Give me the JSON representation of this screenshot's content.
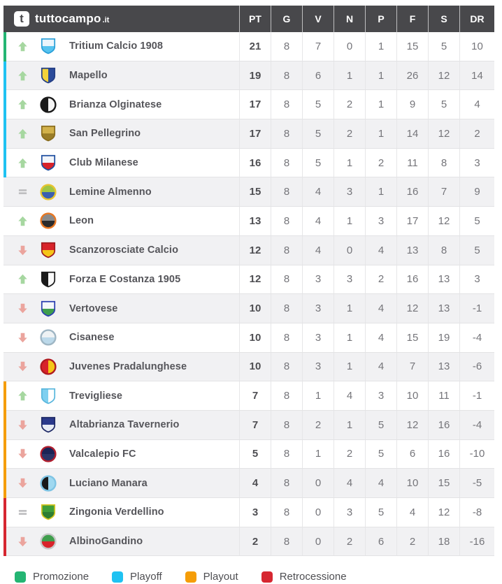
{
  "brand": {
    "icon_letter": "t",
    "name": "tuttocampo",
    "tld": ".it"
  },
  "columns": [
    "PT",
    "G",
    "V",
    "N",
    "P",
    "F",
    "S",
    "DR"
  ],
  "zone_colors": {
    "promozione": "#24b573",
    "playoff": "#1fc2f2",
    "playout": "#f59d07",
    "retrocessione": "#d62731"
  },
  "movement_colors": {
    "up": "#a6d7a0",
    "down": "#eba49d",
    "equal": "#bbbbbd"
  },
  "rows": [
    {
      "team": "Tritium Calcio 1908",
      "movement": "up",
      "zone": "promozione",
      "stats": [
        21,
        8,
        7,
        0,
        1,
        15,
        5,
        10
      ],
      "logo": {
        "shape": "shield",
        "dir": "h",
        "colors": [
          "#eaf5fc",
          "#56c3ef"
        ],
        "border": "#2a9fd8"
      }
    },
    {
      "team": "Mapello",
      "movement": "up",
      "zone": "playoff",
      "stats": [
        19,
        8,
        6,
        1,
        1,
        26,
        12,
        14
      ],
      "logo": {
        "shape": "shield",
        "dir": "v",
        "colors": [
          "#f2d23a",
          "#2b4b9b"
        ],
        "border": "#243f85"
      }
    },
    {
      "team": "Brianza Olginatese",
      "movement": "up",
      "zone": "playoff",
      "stats": [
        17,
        8,
        5,
        2,
        1,
        9,
        5,
        4
      ],
      "logo": {
        "shape": "circle",
        "dir": "v",
        "colors": [
          "#1a1a1a",
          "#f5f5f5"
        ],
        "border": "#1a1a1a"
      }
    },
    {
      "team": "San Pellegrino",
      "movement": "up",
      "zone": "playoff",
      "stats": [
        17,
        8,
        5,
        2,
        1,
        14,
        12,
        2
      ],
      "logo": {
        "shape": "shield",
        "dir": "h",
        "colors": [
          "#d2b14a",
          "#9a7d28"
        ],
        "border": "#8a6d1f"
      }
    },
    {
      "team": "Club Milanese",
      "movement": "up",
      "zone": "playoff",
      "stats": [
        16,
        8,
        5,
        1,
        2,
        11,
        8,
        3
      ],
      "logo": {
        "shape": "shield",
        "dir": "h",
        "colors": [
          "#f2f5fa",
          "#d8232a"
        ],
        "border": "#1f4fa0"
      }
    },
    {
      "team": "Lemine Almenno",
      "movement": "equal",
      "zone": "none",
      "stats": [
        15,
        8,
        4,
        3,
        1,
        16,
        7,
        9
      ],
      "logo": {
        "shape": "circle",
        "dir": "h",
        "colors": [
          "#9fc544",
          "#3a5fb0"
        ],
        "border": "#e7c431"
      }
    },
    {
      "team": "Leon",
      "movement": "up",
      "zone": "none",
      "stats": [
        13,
        8,
        4,
        1,
        3,
        17,
        12,
        5
      ],
      "logo": {
        "shape": "circle",
        "dir": "h",
        "colors": [
          "#8a8a8a",
          "#2b2b2b"
        ],
        "border": "#e87722"
      }
    },
    {
      "team": "Scanzorosciate Calcio",
      "movement": "down",
      "zone": "none",
      "stats": [
        12,
        8,
        4,
        0,
        4,
        13,
        8,
        5
      ],
      "logo": {
        "shape": "shield",
        "dir": "h",
        "colors": [
          "#d8232a",
          "#f5c518"
        ],
        "border": "#a01b20"
      }
    },
    {
      "team": "Forza E Costanza 1905",
      "movement": "up",
      "zone": "none",
      "stats": [
        12,
        8,
        3,
        3,
        2,
        16,
        13,
        3
      ],
      "logo": {
        "shape": "shield",
        "dir": "v",
        "colors": [
          "#1a1a1a",
          "#fafafa"
        ],
        "border": "#1a1a1a"
      }
    },
    {
      "team": "Vertovese",
      "movement": "down",
      "zone": "none",
      "stats": [
        10,
        8,
        3,
        1,
        4,
        12,
        13,
        -1
      ],
      "logo": {
        "shape": "shield",
        "dir": "h",
        "colors": [
          "#f4f7fa",
          "#3f9e4d"
        ],
        "border": "#2b3fb0"
      }
    },
    {
      "team": "Cisanese",
      "movement": "down",
      "zone": "none",
      "stats": [
        10,
        8,
        3,
        1,
        4,
        15,
        19,
        -4
      ],
      "logo": {
        "shape": "circle",
        "dir": "h",
        "colors": [
          "#eef2f4",
          "#bcd9ea"
        ],
        "border": "#9fb6c4"
      }
    },
    {
      "team": "Juvenes Pradalunghese",
      "movement": "down",
      "zone": "none",
      "stats": [
        10,
        8,
        3,
        1,
        4,
        7,
        13,
        -6
      ],
      "logo": {
        "shape": "circle",
        "dir": "v",
        "colors": [
          "#d8232a",
          "#f5c518"
        ],
        "border": "#b01b20"
      }
    },
    {
      "team": "Trevigliese",
      "movement": "up",
      "zone": "playout",
      "stats": [
        7,
        8,
        1,
        4,
        3,
        10,
        11,
        -1
      ],
      "logo": {
        "shape": "shield",
        "dir": "v",
        "colors": [
          "#7fd0f0",
          "#ffffff"
        ],
        "border": "#5ab7dd"
      }
    },
    {
      "team": "Altabrianza Tavernerio",
      "movement": "down",
      "zone": "playout",
      "stats": [
        7,
        8,
        2,
        1,
        5,
        12,
        16,
        -4
      ],
      "logo": {
        "shape": "shield",
        "dir": "h",
        "colors": [
          "#2b3a8c",
          "#e8ecf5"
        ],
        "border": "#1f2a66"
      }
    },
    {
      "team": "Valcalepio FC",
      "movement": "down",
      "zone": "playout",
      "stats": [
        5,
        8,
        1,
        2,
        5,
        6,
        16,
        -10
      ],
      "logo": {
        "shape": "circle",
        "dir": "h",
        "colors": [
          "#1a2456",
          "#2a3466"
        ],
        "border": "#b01e2e"
      }
    },
    {
      "team": "Luciano Manara",
      "movement": "down",
      "zone": "playout",
      "stats": [
        4,
        8,
        0,
        4,
        4,
        10,
        15,
        -5
      ],
      "logo": {
        "shape": "circle",
        "dir": "v",
        "colors": [
          "#1a1a1a",
          "#9fd8f0"
        ],
        "border": "#7fc4e4"
      }
    },
    {
      "team": "Zingonia Verdellino",
      "movement": "equal",
      "zone": "retrocessione",
      "stats": [
        3,
        8,
        0,
        3,
        5,
        4,
        12,
        -8
      ],
      "logo": {
        "shape": "shield",
        "dir": "h",
        "colors": [
          "#3f9e3a",
          "#2e7d32"
        ],
        "border": "#d6c520"
      }
    },
    {
      "team": "AlbinoGandino",
      "movement": "down",
      "zone": "retrocessione",
      "stats": [
        2,
        8,
        0,
        2,
        6,
        2,
        18,
        -16
      ],
      "logo": {
        "shape": "circle",
        "dir": "h",
        "colors": [
          "#3f9e4d",
          "#d8232a"
        ],
        "border": "#c8c8c8"
      }
    }
  ],
  "legend": [
    {
      "label": "Promozione",
      "zone": "promozione"
    },
    {
      "label": "Playoff",
      "zone": "playoff"
    },
    {
      "label": "Playout",
      "zone": "playout"
    },
    {
      "label": "Retrocessione",
      "zone": "retrocessione"
    }
  ]
}
